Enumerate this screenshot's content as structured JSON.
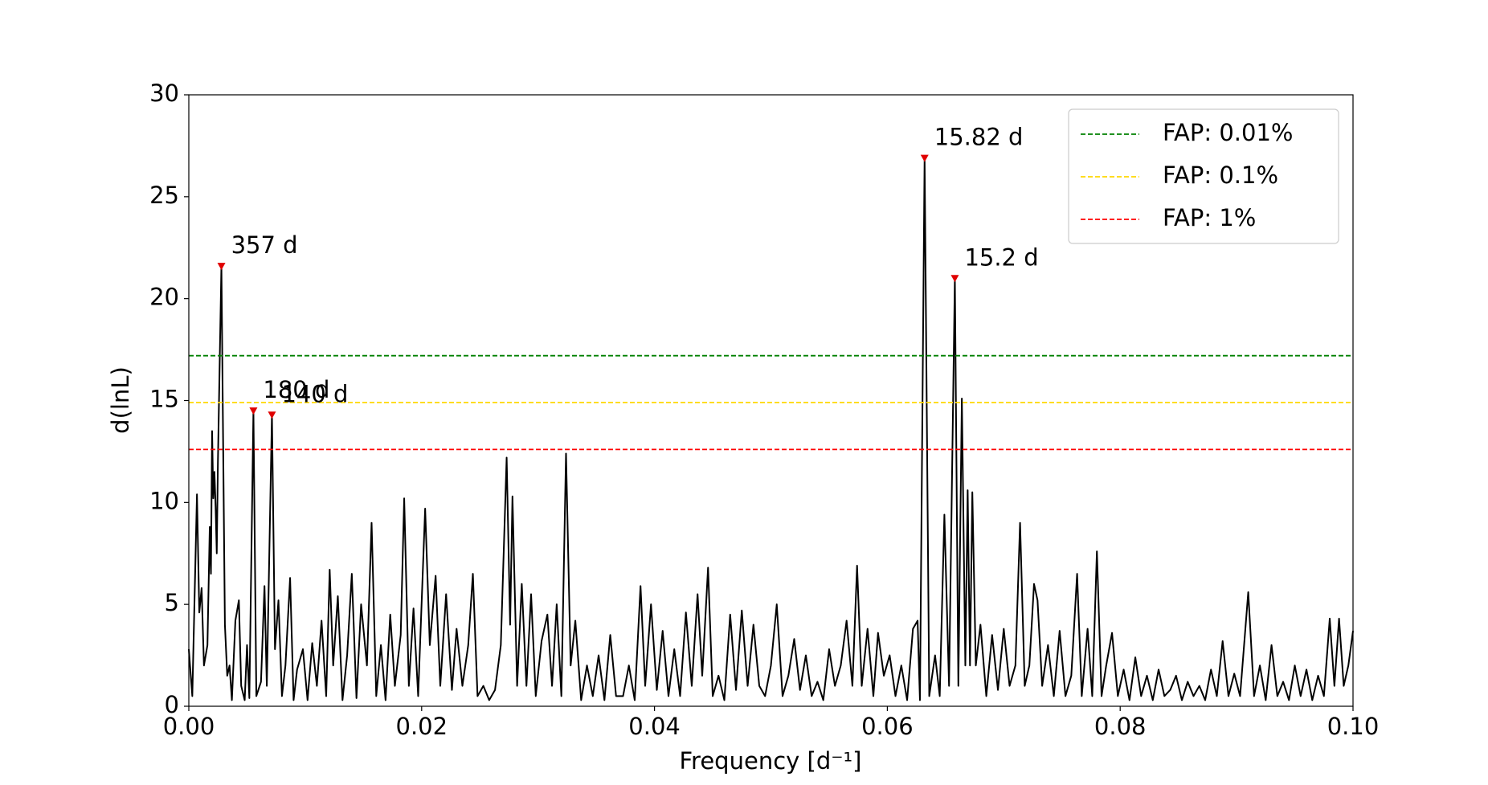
{
  "chart_data": {
    "type": "line",
    "xlabel": "Frequency [d⁻¹]",
    "ylabel": "d(lnL)",
    "x": [
      0,
      0.0003,
      0.0007,
      0.0009,
      0.0011,
      0.0013,
      0.0016,
      0.0018,
      0.0019,
      0.002,
      0.0021,
      0.0022,
      0.0023,
      0.0024,
      0.0025,
      0.0028,
      0.0031,
      0.0033,
      0.0035,
      0.0037,
      0.004,
      0.0043,
      0.0045,
      0.0048,
      0.005,
      0.0052,
      0.00555,
      0.0058,
      0.0062,
      0.0065,
      0.0067,
      0.00714,
      0.0074,
      0.0077,
      0.008,
      0.0083,
      0.0087,
      0.009,
      0.0093,
      0.0098,
      0.0102,
      0.0106,
      0.011,
      0.0114,
      0.0118,
      0.0121,
      0.0124,
      0.0128,
      0.0132,
      0.0136,
      0.014,
      0.0144,
      0.0148,
      0.0153,
      0.0157,
      0.0161,
      0.0165,
      0.0169,
      0.0173,
      0.0177,
      0.0182,
      0.0185,
      0.0189,
      0.0193,
      0.0197,
      0.0203,
      0.0207,
      0.0212,
      0.0216,
      0.0221,
      0.0226,
      0.023,
      0.0235,
      0.024,
      0.0244,
      0.0248,
      0.0253,
      0.0258,
      0.0263,
      0.0268,
      0.0273,
      0.0276,
      0.0278,
      0.0282,
      0.0286,
      0.029,
      0.0294,
      0.0298,
      0.0303,
      0.0308,
      0.0312,
      0.0316,
      0.032,
      0.0324,
      0.0328,
      0.0332,
      0.0337,
      0.0342,
      0.0347,
      0.0352,
      0.0357,
      0.0362,
      0.0367,
      0.0373,
      0.0378,
      0.0383,
      0.0388,
      0.0392,
      0.0397,
      0.0402,
      0.0407,
      0.0412,
      0.0417,
      0.0422,
      0.0427,
      0.0432,
      0.0437,
      0.0441,
      0.0446,
      0.045,
      0.0455,
      0.046,
      0.0465,
      0.047,
      0.0475,
      0.048,
      0.0485,
      0.049,
      0.0495,
      0.05,
      0.0505,
      0.051,
      0.0515,
      0.052,
      0.0525,
      0.053,
      0.0535,
      0.054,
      0.0545,
      0.055,
      0.0555,
      0.056,
      0.0565,
      0.057,
      0.0574,
      0.0578,
      0.0583,
      0.0588,
      0.0592,
      0.0597,
      0.0602,
      0.0607,
      0.0612,
      0.0617,
      0.0622,
      0.0626,
      0.0628,
      0.0632,
      0.0636,
      0.0641,
      0.0645,
      0.0649,
      0.0653,
      0.0658,
      0.0661,
      0.0664,
      0.0667,
      0.0669,
      0.0671,
      0.0673,
      0.0676,
      0.068,
      0.0685,
      0.069,
      0.0695,
      0.07,
      0.0705,
      0.071,
      0.0714,
      0.0718,
      0.0722,
      0.0726,
      0.0729,
      0.0733,
      0.0738,
      0.0743,
      0.0748,
      0.0753,
      0.0758,
      0.0763,
      0.0767,
      0.0772,
      0.0776,
      0.078,
      0.0784,
      0.0788,
      0.0793,
      0.0798,
      0.0803,
      0.0808,
      0.0813,
      0.0818,
      0.0823,
      0.0828,
      0.0833,
      0.0838,
      0.0843,
      0.0848,
      0.0853,
      0.0858,
      0.0863,
      0.0868,
      0.0873,
      0.0878,
      0.0883,
      0.0888,
      0.0893,
      0.0898,
      0.0903,
      0.091,
      0.0915,
      0.092,
      0.0925,
      0.093,
      0.0935,
      0.094,
      0.0945,
      0.095,
      0.0955,
      0.096,
      0.0965,
      0.097,
      0.0975,
      0.098,
      0.0984,
      0.0988,
      0.0992,
      0.0996,
      0.1
    ],
    "values": [
      2.8,
      0.5,
      10.4,
      4.6,
      5.8,
      2.0,
      3.0,
      8.8,
      6.5,
      13.5,
      10.2,
      11.5,
      9.8,
      7.5,
      12.0,
      21.6,
      4.0,
      1.5,
      2.0,
      0.3,
      4.2,
      5.2,
      1.0,
      0.3,
      3.0,
      0.4,
      14.5,
      0.5,
      1.2,
      5.9,
      1.0,
      14.3,
      2.8,
      5.2,
      0.5,
      2.0,
      6.3,
      0.3,
      1.8,
      2.8,
      0.3,
      3.1,
      1.0,
      4.2,
      0.5,
      6.7,
      2.0,
      5.4,
      0.3,
      2.5,
      6.5,
      0.4,
      5.0,
      2.0,
      9.0,
      0.5,
      3.0,
      0.3,
      4.5,
      1.0,
      3.5,
      10.2,
      1.0,
      4.8,
      0.5,
      9.7,
      3.0,
      6.4,
      1.0,
      5.5,
      0.8,
      3.8,
      1.0,
      3.0,
      6.5,
      0.5,
      1.0,
      0.3,
      0.8,
      3.0,
      12.2,
      4.0,
      10.3,
      1.0,
      6.0,
      1.0,
      5.5,
      0.5,
      3.2,
      4.5,
      1.0,
      5.0,
      0.5,
      12.4,
      2.0,
      4.2,
      0.3,
      2.0,
      0.5,
      2.5,
      0.3,
      3.5,
      0.5,
      0.5,
      2.0,
      0.3,
      5.9,
      1.0,
      5.0,
      0.8,
      3.7,
      0.5,
      2.8,
      0.5,
      4.6,
      1.0,
      5.5,
      1.5,
      6.8,
      0.5,
      1.5,
      0.3,
      4.5,
      0.8,
      4.7,
      1.0,
      4.0,
      1.0,
      0.5,
      2.0,
      5.0,
      0.5,
      1.5,
      3.3,
      0.8,
      2.5,
      0.5,
      1.2,
      0.3,
      2.8,
      1.0,
      2.0,
      4.2,
      1.0,
      6.9,
      1.0,
      3.8,
      0.5,
      3.6,
      1.5,
      2.5,
      0.5,
      2.0,
      0.3,
      3.8,
      4.2,
      0.3,
      26.9,
      0.5,
      2.5,
      0.5,
      9.4,
      1.0,
      21.0,
      1.0,
      15.1,
      2.0,
      10.6,
      2.0,
      10.5,
      2.0,
      4.0,
      0.5,
      3.5,
      0.8,
      3.8,
      1.0,
      2.0,
      9.0,
      1.0,
      2.0,
      6.0,
      5.2,
      1.0,
      3.0,
      0.5,
      3.7,
      0.5,
      1.5,
      6.5,
      0.5,
      3.8,
      0.5,
      7.6,
      0.5,
      2.0,
      3.6,
      0.5,
      1.8,
      0.3,
      2.4,
      0.5,
      1.5,
      0.3,
      1.8,
      0.5,
      0.8,
      1.5,
      0.3,
      1.2,
      0.5,
      1.0,
      0.3,
      1.8,
      0.5,
      3.2,
      0.5,
      1.6,
      0.5,
      5.6,
      0.5,
      2.0,
      0.3,
      3.0,
      0.5,
      1.2,
      0.3,
      2.0,
      0.5,
      1.8,
      0.3,
      1.5,
      0.5,
      4.3,
      1.0,
      4.3,
      1.0,
      2.0,
      3.7
    ],
    "color": "#000000",
    "peaks": [
      {
        "x": 0.0028,
        "y": 21.6,
        "label": "357 d"
      },
      {
        "x": 0.00555,
        "y": 14.5,
        "label": "180 d"
      },
      {
        "x": 0.00714,
        "y": 14.3,
        "label": "140 d"
      },
      {
        "x": 0.0632,
        "y": 26.9,
        "label": "15.82 d"
      },
      {
        "x": 0.0658,
        "y": 21.0,
        "label": "15.2 d"
      }
    ],
    "peak_color": "#e00000",
    "hlines": [
      {
        "name": "FAP: 0.01%",
        "color": "#008000",
        "value": 17.2
      },
      {
        "name": "FAP: 0.1%",
        "color": "#ffd700",
        "value": 14.9
      },
      {
        "name": "FAP: 1%",
        "color": "#ff0000",
        "value": 12.6
      }
    ],
    "legend": "upper right",
    "xlim": [
      0,
      0.1
    ],
    "xticks": [
      {
        "value": 0,
        "label": "0.00"
      },
      {
        "value": 0.02,
        "label": "0.02"
      },
      {
        "value": 0.04,
        "label": "0.04"
      },
      {
        "value": 0.06,
        "label": "0.06"
      },
      {
        "value": 0.08,
        "label": "0.08"
      },
      {
        "value": 0.1,
        "label": "0.10"
      }
    ],
    "ylim": [
      0,
      30
    ],
    "yticks": [
      0,
      5,
      10,
      15,
      20,
      25,
      30
    ]
  }
}
